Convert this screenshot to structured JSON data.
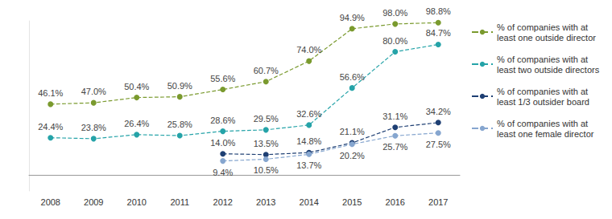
{
  "chart_data": {
    "type": "line",
    "categories": [
      "2008",
      "2009",
      "2010",
      "2011",
      "2012",
      "2013",
      "2014",
      "2015",
      "2016",
      "2017"
    ],
    "ylim": [
      -10,
      100
    ],
    "yticks": [],
    "tick_labels": "x",
    "grid": false,
    "legend": "right",
    "data_labels": true,
    "line_style": "dashed",
    "marker": "circle",
    "series": [
      {
        "name": "% of companies with at least one outside director",
        "color": "#7a9a2e",
        "values": [
          46.1,
          47.0,
          50.4,
          50.9,
          55.6,
          60.7,
          74.0,
          94.9,
          98.0,
          98.8
        ],
        "value_labels": [
          "46.1%",
          "47.0%",
          "50.4%",
          "50.9%",
          "55.6%",
          "60.7%",
          "74.0%",
          "94.9%",
          "98.0%",
          "98.8%"
        ]
      },
      {
        "name": "% of companies with at least two outside directors",
        "color": "#25a3a8",
        "values": [
          24.4,
          23.8,
          26.4,
          25.8,
          28.6,
          29.5,
          32.6,
          56.6,
          80.0,
          84.7
        ],
        "value_labels": [
          "24.4%",
          "23.8%",
          "26.4%",
          "25.8%",
          "28.6%",
          "29.5%",
          "32.6%",
          "56.6%",
          "80.0%",
          "84.7%"
        ]
      },
      {
        "name": "% of companies with at least 1/3 outsider board",
        "color": "#1e3f73",
        "values": [
          null,
          null,
          null,
          null,
          14.0,
          13.5,
          14.8,
          21.1,
          31.1,
          34.2
        ],
        "value_labels": [
          null,
          null,
          null,
          null,
          "14.0%",
          "13.5%",
          "14.8%",
          "21.1%",
          "31.1%",
          "34.2%"
        ]
      },
      {
        "name": "% of companies with at least one female director",
        "color": "#86a6cf",
        "values": [
          null,
          null,
          null,
          null,
          9.4,
          10.5,
          13.7,
          20.2,
          25.7,
          27.5
        ],
        "value_labels": [
          null,
          null,
          null,
          null,
          "9.4%",
          "10.5%",
          "13.7%",
          "20.2%",
          "25.7%",
          "27.5%"
        ]
      }
    ]
  }
}
